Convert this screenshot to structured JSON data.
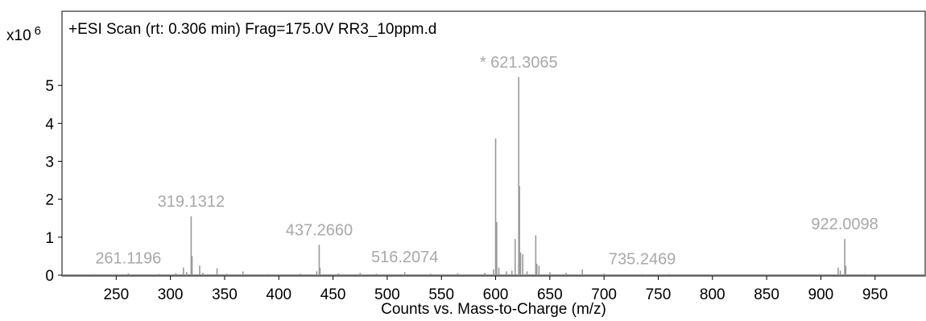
{
  "chart_data": {
    "type": "spectrum",
    "title": "+ESI Scan (rt: 0.306 min) Frag=175.0V RR3_10ppm.d",
    "y_scale_label": "x10",
    "y_scale_exponent": "6",
    "x_label": "Counts vs. Mass-to-Charge (m/z)",
    "color": "#9a9a9a",
    "label_color": "#a8a8a8",
    "xlim": [
      200,
      997
    ],
    "ylim": [
      0,
      6
    ],
    "xticks": [
      250,
      300,
      350,
      400,
      450,
      500,
      550,
      600,
      650,
      700,
      750,
      800,
      850,
      900,
      950
    ],
    "yticks": [
      0,
      1,
      2,
      3,
      4,
      5
    ],
    "x": [
      213,
      230,
      245,
      261.1196,
      275,
      290,
      305,
      312,
      315,
      319.1312,
      320,
      327,
      330,
      343,
      352,
      367,
      390,
      420,
      435,
      437.266,
      438,
      455,
      475,
      490,
      516.2074,
      540,
      565,
      590,
      598,
      600,
      601,
      603,
      610,
      615,
      618,
      621.3065,
      622,
      623,
      625,
      629,
      637,
      638,
      640,
      650,
      665,
      680,
      700,
      735.2469,
      760,
      800,
      850,
      880,
      916,
      918,
      922.0098,
      923,
      940,
      970
    ],
    "values": [
      0.02,
      0.03,
      0.02,
      0.05,
      0.02,
      0.03,
      0.05,
      0.2,
      0.08,
      1.55,
      0.5,
      0.25,
      0.06,
      0.18,
      0.04,
      0.1,
      0.03,
      0.04,
      0.1,
      0.8,
      0.2,
      0.05,
      0.06,
      0.04,
      0.08,
      0.04,
      0.05,
      0.06,
      0.15,
      3.6,
      1.4,
      0.2,
      0.1,
      0.12,
      0.95,
      5.22,
      2.35,
      0.6,
      0.55,
      0.1,
      1.05,
      0.3,
      0.25,
      0.08,
      0.06,
      0.15,
      0.04,
      0.03,
      0.03,
      0.02,
      0.02,
      0.02,
      0.2,
      0.12,
      0.95,
      0.25,
      0.03,
      0.02
    ],
    "annotations": [
      {
        "text": "261.1196",
        "x": 261.1196
      },
      {
        "text": "319.1312",
        "x": 319.1312
      },
      {
        "text": "437.2660",
        "x": 437.266
      },
      {
        "text": "516.2074",
        "x": 516.2074
      },
      {
        "text": "* 621.3065",
        "x": 621.3065
      },
      {
        "text": "735.2469",
        "x": 735.2469
      },
      {
        "text": "922.0098",
        "x": 922.0098
      }
    ]
  }
}
